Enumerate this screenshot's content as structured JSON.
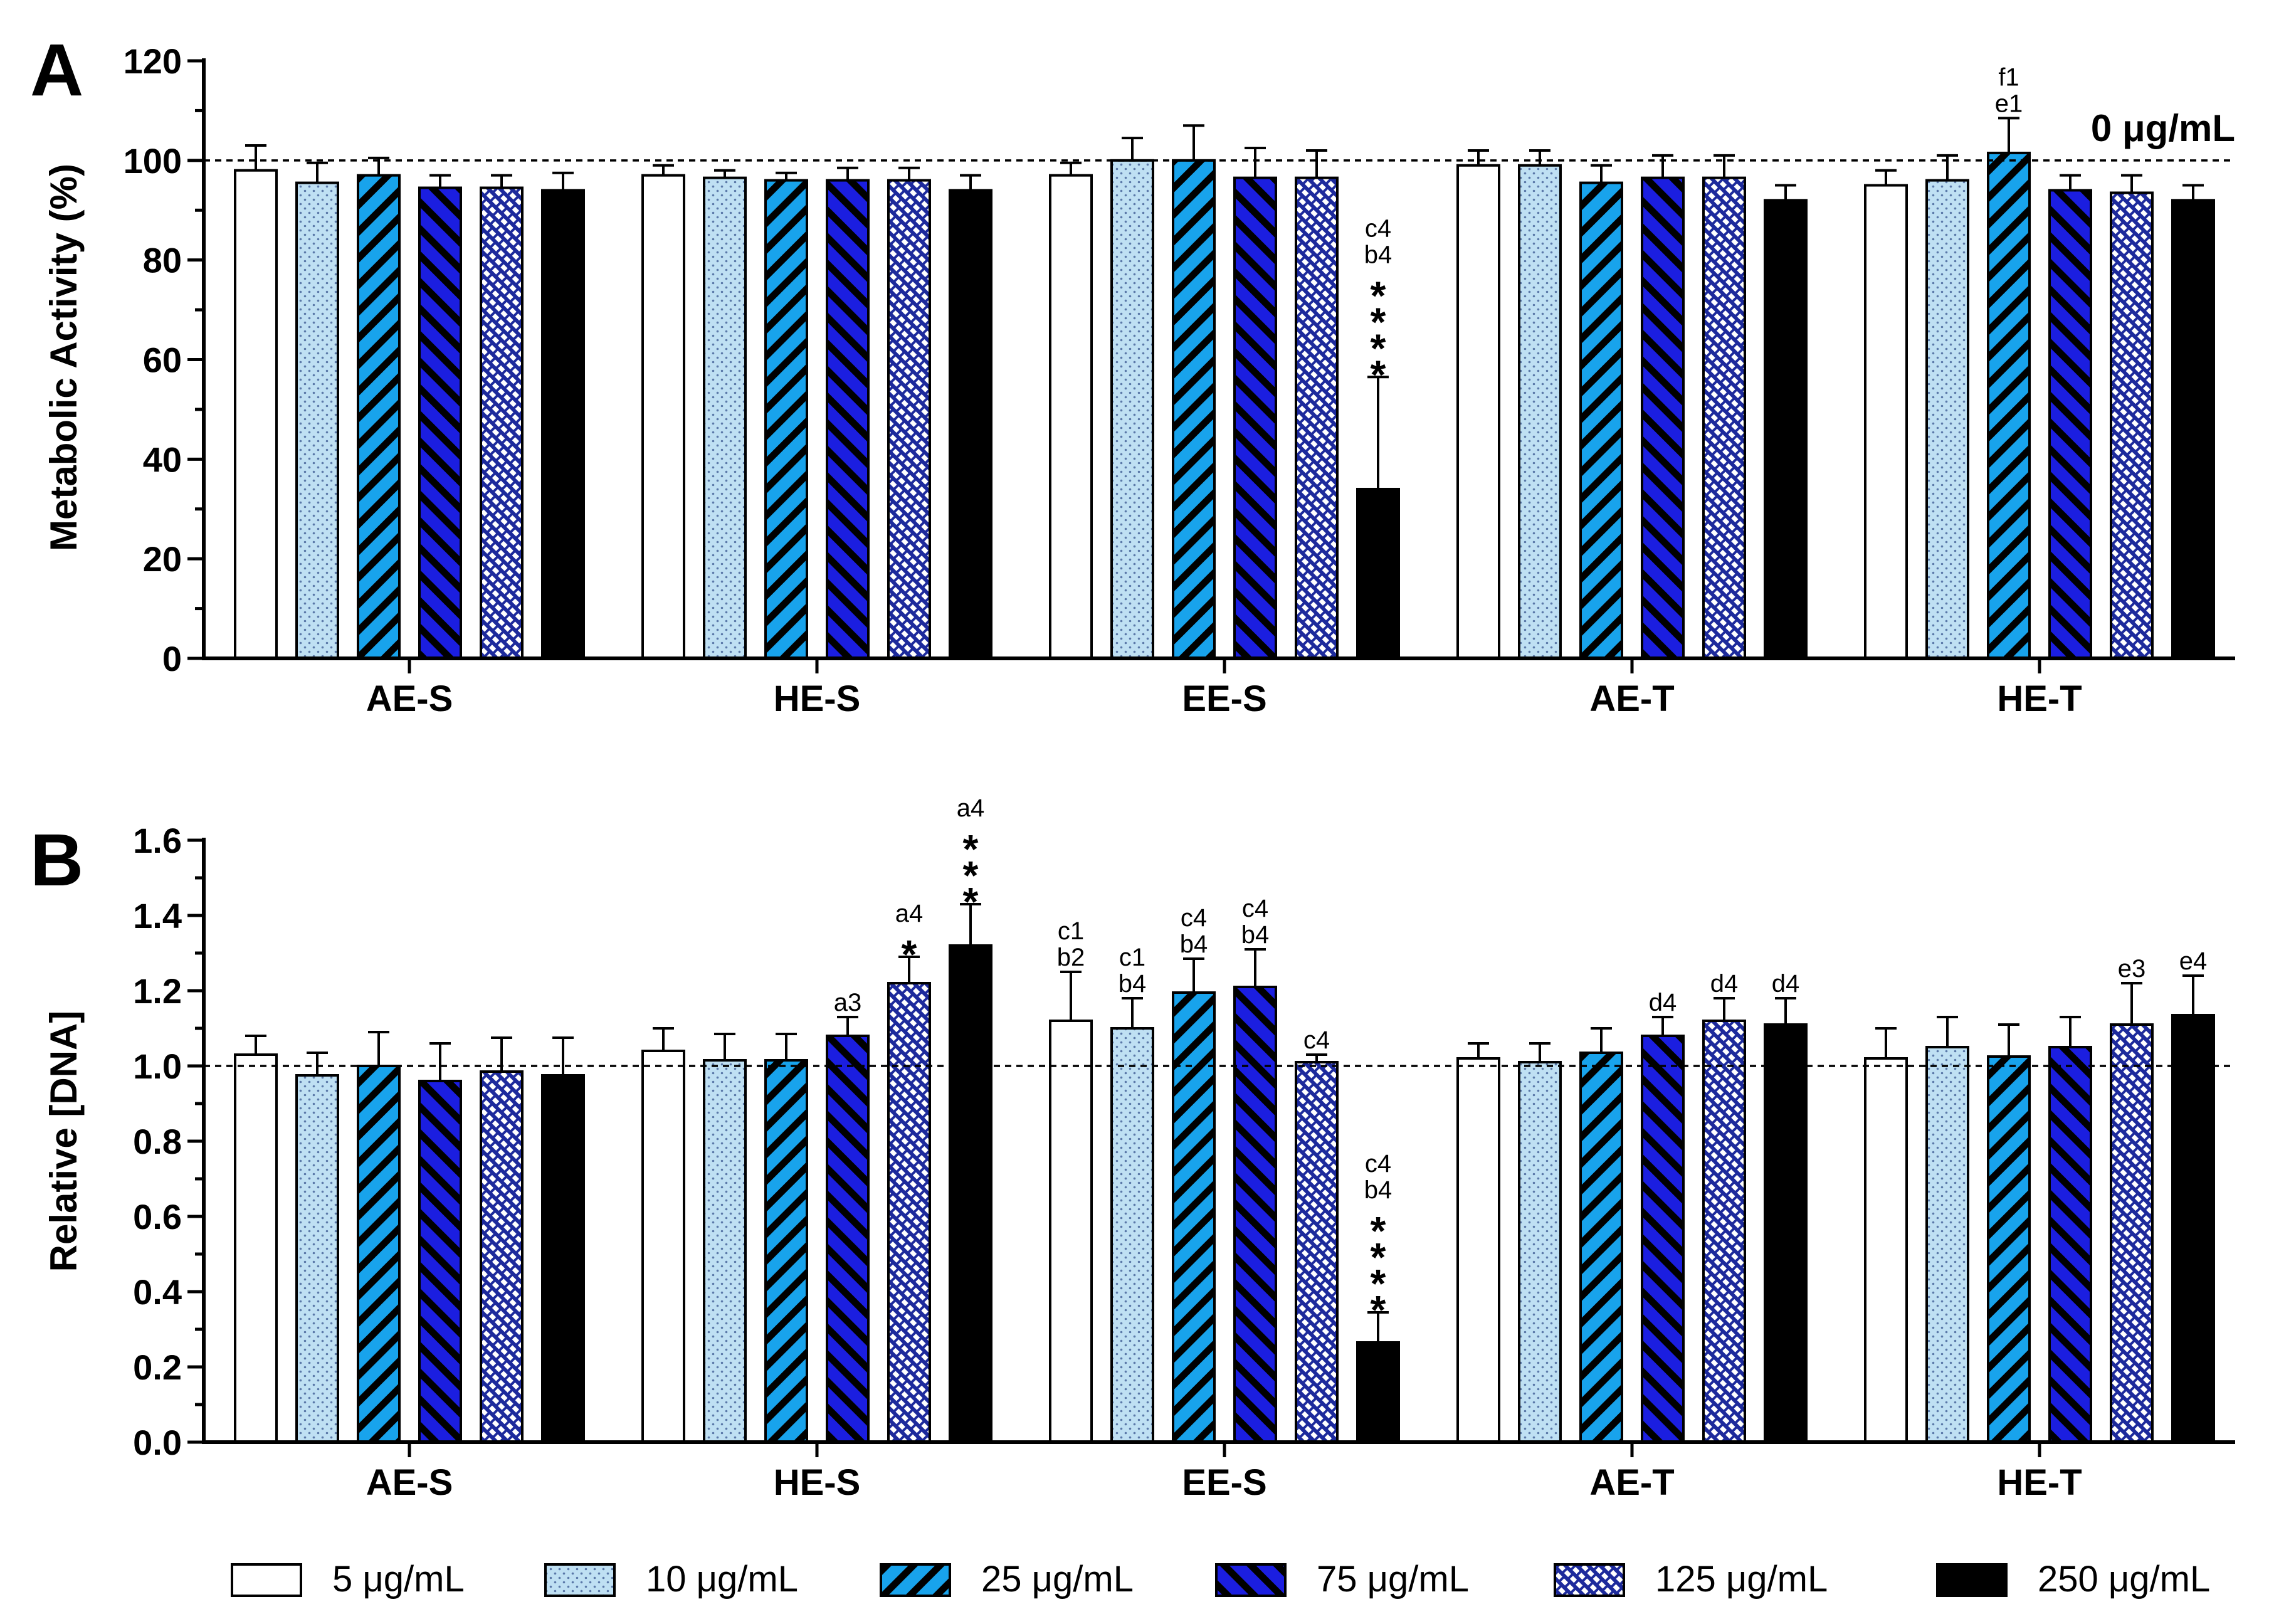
{
  "chart_data": [
    {
      "panel": "A",
      "type": "bar",
      "ylabel": "Metabolic Activity (%)",
      "ylim": [
        0,
        120
      ],
      "yticks": [
        "0",
        "20",
        "40",
        "60",
        "80",
        "100",
        "120"
      ],
      "reference_line": 100,
      "reference_label": "0 μg/mL",
      "categories": [
        "AE-S",
        "HE-S",
        "EE-S",
        "AE-T",
        "HE-T"
      ],
      "series": [
        {
          "name": "5 μg/mL",
          "values": [
            98,
            97,
            97,
            99,
            95
          ],
          "errors": [
            5,
            2,
            2.5,
            3,
            3
          ]
        },
        {
          "name": "10 μg/mL",
          "values": [
            95.5,
            96.5,
            100,
            99,
            96
          ],
          "errors": [
            4,
            1.5,
            4.5,
            3,
            5
          ]
        },
        {
          "name": "25 μg/mL",
          "values": [
            97,
            96,
            100,
            95.5,
            101.5
          ],
          "errors": [
            3.5,
            1.5,
            7,
            3.5,
            7
          ]
        },
        {
          "name": "75 μg/mL",
          "values": [
            94.5,
            96,
            96.5,
            96.5,
            94
          ],
          "errors": [
            2.5,
            2.5,
            6,
            4.5,
            3
          ]
        },
        {
          "name": "125 μg/mL",
          "values": [
            94.5,
            96,
            96.5,
            96.5,
            93.5
          ],
          "errors": [
            2.5,
            2.5,
            5.5,
            4.5,
            3.5
          ]
        },
        {
          "name": "250 μg/mL",
          "values": [
            94,
            94,
            34,
            92,
            92
          ],
          "errors": [
            3.5,
            3,
            22.5,
            3,
            3
          ]
        }
      ],
      "annotations": [
        {
          "category": "EE-S",
          "series": "250 μg/mL",
          "lines": [
            "c4",
            "b4",
            "****"
          ]
        },
        {
          "category": "HE-T",
          "series": "25 μg/mL",
          "lines": [
            "f1",
            "e1"
          ]
        }
      ]
    },
    {
      "panel": "B",
      "type": "bar",
      "ylabel": "Relative [DNA]",
      "ylim": [
        0.0,
        1.6
      ],
      "yticks": [
        "0.0",
        "0.2",
        "0.4",
        "0.6",
        "0.8",
        "1.0",
        "1.2",
        "1.4",
        "1.6"
      ],
      "reference_line": 1.0,
      "categories": [
        "AE-S",
        "HE-S",
        "EE-S",
        "AE-T",
        "HE-T"
      ],
      "series": [
        {
          "name": "5 μg/mL",
          "values": [
            1.03,
            1.04,
            1.12,
            1.02,
            1.02
          ],
          "errors": [
            0.05,
            0.06,
            0.13,
            0.04,
            0.08
          ]
        },
        {
          "name": "10 μg/mL",
          "values": [
            0.975,
            1.015,
            1.1,
            1.01,
            1.05
          ],
          "errors": [
            0.06,
            0.07,
            0.08,
            0.05,
            0.08
          ]
        },
        {
          "name": "25 μg/mL",
          "values": [
            1.0,
            1.015,
            1.195,
            1.035,
            1.025
          ],
          "errors": [
            0.09,
            0.07,
            0.09,
            0.065,
            0.085
          ]
        },
        {
          "name": "75 μg/mL",
          "values": [
            0.96,
            1.08,
            1.21,
            1.08,
            1.05
          ],
          "errors": [
            0.1,
            0.05,
            0.1,
            0.05,
            0.08
          ]
        },
        {
          "name": "125 μg/mL",
          "values": [
            0.985,
            1.22,
            1.01,
            1.12,
            1.11
          ],
          "errors": [
            0.09,
            0.07,
            0.02,
            0.06,
            0.11
          ]
        },
        {
          "name": "250 μg/mL",
          "values": [
            0.975,
            1.32,
            0.265,
            1.11,
            1.135
          ],
          "errors": [
            0.1,
            0.11,
            0.08,
            0.07,
            0.105
          ]
        }
      ],
      "annotations": [
        {
          "category": "HE-S",
          "series": "75 μg/mL",
          "lines": [
            "a3"
          ]
        },
        {
          "category": "HE-S",
          "series": "125 μg/mL",
          "lines": [
            "a4",
            "*"
          ]
        },
        {
          "category": "HE-S",
          "series": "250 μg/mL",
          "lines": [
            "a4",
            "***"
          ]
        },
        {
          "category": "EE-S",
          "series": "5 μg/mL",
          "lines": [
            "c1",
            "b2"
          ]
        },
        {
          "category": "EE-S",
          "series": "10 μg/mL",
          "lines": [
            "c1",
            "b4"
          ]
        },
        {
          "category": "EE-S",
          "series": "25 μg/mL",
          "lines": [
            "c4",
            "b4"
          ]
        },
        {
          "category": "EE-S",
          "series": "75 μg/mL",
          "lines": [
            "c4",
            "b4"
          ]
        },
        {
          "category": "EE-S",
          "series": "125 μg/mL",
          "lines": [
            "c4"
          ]
        },
        {
          "category": "EE-S",
          "series": "250 μg/mL",
          "lines": [
            "c4",
            "b4",
            "****"
          ]
        },
        {
          "category": "AE-T",
          "series": "75 μg/mL",
          "lines": [
            "d4"
          ]
        },
        {
          "category": "AE-T",
          "series": "125 μg/mL",
          "lines": [
            "d4"
          ]
        },
        {
          "category": "AE-T",
          "series": "250 μg/mL",
          "lines": [
            "d4"
          ]
        },
        {
          "category": "HE-T",
          "series": "125 μg/mL",
          "lines": [
            "e3"
          ]
        },
        {
          "category": "HE-T",
          "series": "250 μg/mL",
          "lines": [
            "e4"
          ]
        }
      ]
    }
  ],
  "legend": [
    {
      "label": "5 μg/mL",
      "style": "white"
    },
    {
      "label": "10 μg/mL",
      "style": "lightblue-dots"
    },
    {
      "label": "25 μg/mL",
      "style": "skyblue-stripes"
    },
    {
      "label": "75 μg/mL",
      "style": "blue-stripes"
    },
    {
      "label": "125 μg/mL",
      "style": "navy-weave"
    },
    {
      "label": "250 μg/mL",
      "style": "black"
    }
  ],
  "colors": {
    "white": "#ffffff",
    "lightblue": "#bfe0f3",
    "skyblue": "#18a3ec",
    "blue": "#1b1ee0",
    "navy": "#1d2a9c",
    "black": "#000000"
  }
}
